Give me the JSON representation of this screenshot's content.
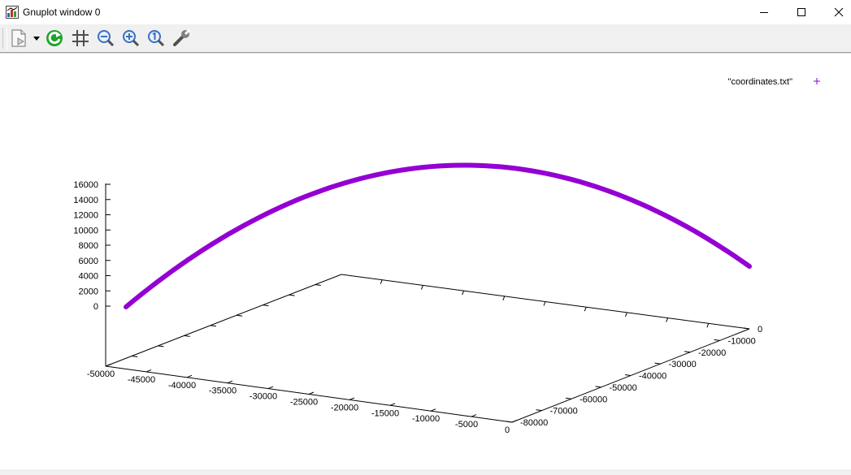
{
  "window": {
    "title": "Gnuplot window 0",
    "controls": [
      "minimize",
      "maximize",
      "close"
    ]
  },
  "toolbar": {
    "buttons": [
      {
        "name": "copy-options-icon",
        "has_dropdown": true
      },
      {
        "name": "replot-icon"
      },
      {
        "name": "grid-icon"
      },
      {
        "name": "zoom-out-icon"
      },
      {
        "name": "zoom-in-icon"
      },
      {
        "name": "zoom-reset-icon"
      },
      {
        "name": "options-wrench-icon"
      }
    ]
  },
  "chart_data": {
    "type": "scatter",
    "dimensions": 3,
    "legend": {
      "entries": [
        "\"coordinates.txt\""
      ],
      "marker": "+",
      "placement": "top-right"
    },
    "series": [
      {
        "name": "\"coordinates.txt\"",
        "color": "#9400d3",
        "description_points": [
          [
            -47500,
            -80000,
            0
          ],
          [
            -23750,
            -60000,
            16200
          ],
          [
            0,
            -20000,
            0
          ]
        ]
      }
    ],
    "x_axis": {
      "range": [
        -50000,
        0
      ],
      "ticks": [
        "-50000",
        "-45000",
        "-40000",
        "-35000",
        "-30000",
        "-25000",
        "-20000",
        "-15000",
        "-10000",
        "-5000",
        "0"
      ]
    },
    "y_axis": {
      "range": [
        -80000,
        0
      ],
      "ticks": [
        "0",
        "-10000",
        "-20000",
        "-30000",
        "-40000",
        "-50000",
        "-60000",
        "-70000",
        "-80000"
      ]
    },
    "z_axis": {
      "range": [
        0,
        16000
      ],
      "ticks": [
        "0",
        "2000",
        "4000",
        "6000",
        "8000",
        "10000",
        "12000",
        "14000",
        "16000"
      ]
    }
  }
}
